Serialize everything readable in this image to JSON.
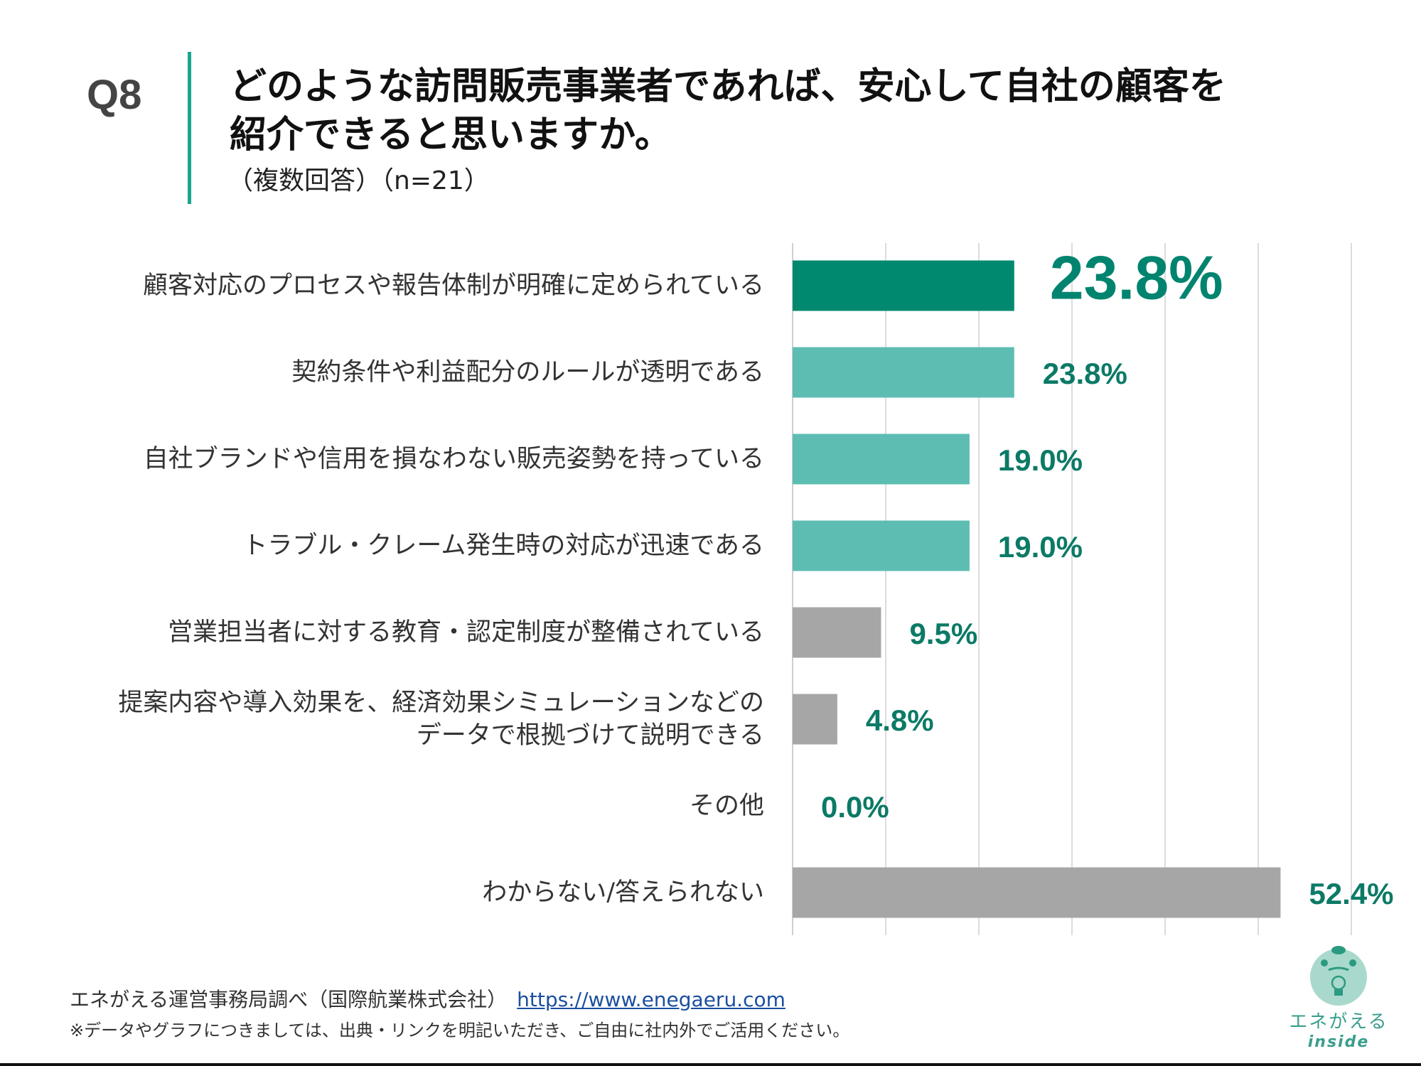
{
  "header": {
    "question_no": "Q8",
    "title_line1": "どのような訪問販売事業者であれば、安心して自社の顧客を",
    "title_line2": "紹介できると思いますか。",
    "subtitle": "（複数回答）（n=21）"
  },
  "chart_data": {
    "type": "bar",
    "orientation": "horizontal",
    "categories": [
      "顧客対応のプロセスや報告体制が明確に定められている",
      "契約条件や利益配分のルールが透明である",
      "自社ブランドや信用を損なわない販売姿勢を持っている",
      "トラブル・クレーム発生時の対応が迅速である",
      "営業担当者に対する教育・認定制度が整備されている",
      "提案内容や導入効果を、経済効果シミュレーションなどの\nデータで根拠づけて説明できる",
      "その他",
      "わからない/答えられない"
    ],
    "values": [
      23.8,
      23.8,
      19.0,
      19.0,
      9.5,
      4.8,
      0.0,
      52.4
    ],
    "value_labels": [
      "23.8%",
      "23.8%",
      "19.0%",
      "19.0%",
      "9.5%",
      "4.8%",
      "0.0%",
      "52.4%"
    ],
    "bar_colors": [
      "#00896f",
      "#5dbdb3",
      "#5dbdb3",
      "#5dbdb3",
      "#a6a6a6",
      "#a6a6a6",
      "#a6a6a6",
      "#a6a6a6"
    ],
    "label_color": "#0b7a66",
    "xlim": [
      0,
      60
    ],
    "grid": true,
    "grid_step": 10,
    "legend": "none"
  },
  "footer": {
    "source": "エネがえる運営事務局調べ（国際航業株式会社）",
    "link": "https://www.enegaeru.com",
    "note": "※データやグラフにつきましては、出典・リンクを明記いただき、ご自由に社内外でご活用ください。"
  },
  "logo": {
    "name": "エネがえる",
    "sub": "inside"
  }
}
